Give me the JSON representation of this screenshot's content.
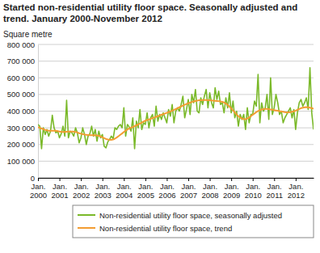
{
  "chart_data": {
    "type": "line",
    "title": "Started non-residential utility floor space. Seasonally adjusted and trend. January 2000-November 2012",
    "y_label": "Square metre",
    "categories": [
      "Jan. 2000",
      null,
      null,
      null,
      null,
      null,
      null,
      null,
      null,
      null,
      null,
      null,
      "Jan. 2001",
      null,
      null,
      null,
      null,
      null,
      null,
      null,
      null,
      null,
      null,
      null,
      "Jan. 2002",
      null,
      null,
      null,
      null,
      null,
      null,
      null,
      null,
      null,
      null,
      null,
      "Jan. 2003",
      null,
      null,
      null,
      null,
      null,
      null,
      null,
      null,
      null,
      null,
      null,
      "Jan. 2004",
      null,
      null,
      null,
      null,
      null,
      null,
      null,
      null,
      null,
      null,
      null,
      "Jan. 2005",
      null,
      null,
      null,
      null,
      null,
      null,
      null,
      null,
      null,
      null,
      null,
      "Jan. 2006",
      null,
      null,
      null,
      null,
      null,
      null,
      null,
      null,
      null,
      null,
      null,
      "Jan. 2007",
      null,
      null,
      null,
      null,
      null,
      null,
      null,
      null,
      null,
      null,
      null,
      "Jan. 2008",
      null,
      null,
      null,
      null,
      null,
      null,
      null,
      null,
      null,
      null,
      null,
      "Jan. 2009",
      null,
      null,
      null,
      null,
      null,
      null,
      null,
      null,
      null,
      null,
      null,
      "Jan. 2010",
      null,
      null,
      null,
      null,
      null,
      null,
      null,
      null,
      null,
      null,
      null,
      "Jan. 2011",
      null,
      null,
      null,
      null,
      null,
      null,
      null,
      null,
      null,
      null,
      null,
      "Jan. 2012",
      null,
      null,
      null,
      null,
      null,
      null,
      null,
      null,
      null,
      null
    ],
    "series": [
      {
        "name": "Non-residential utility floor space, seasonally adjusted",
        "color": "#7ab929",
        "values": [
          320000,
          310000,
          175000,
          300000,
          260000,
          290000,
          250000,
          280000,
          375000,
          300000,
          270000,
          280000,
          240000,
          265000,
          310000,
          250000,
          465000,
          240000,
          280000,
          270000,
          250000,
          300000,
          270000,
          210000,
          240000,
          300000,
          260000,
          200000,
          250000,
          265000,
          310000,
          250000,
          290000,
          220000,
          280000,
          240000,
          260000,
          190000,
          180000,
          215000,
          230000,
          250000,
          235000,
          300000,
          290000,
          310000,
          320000,
          300000,
          420000,
          250000,
          320000,
          305000,
          280000,
          360000,
          175000,
          340000,
          300000,
          410000,
          290000,
          330000,
          320000,
          390000,
          300000,
          360000,
          380000,
          310000,
          430000,
          340000,
          380000,
          350000,
          390000,
          360000,
          330000,
          410000,
          370000,
          440000,
          330000,
          400000,
          420000,
          400000,
          440000,
          490000,
          360000,
          410000,
          470000,
          380000,
          500000,
          450000,
          530000,
          400000,
          390000,
          480000,
          440000,
          490000,
          530000,
          420000,
          510000,
          450000,
          420000,
          540000,
          470000,
          520000,
          440000,
          450000,
          390000,
          480000,
          420000,
          510000,
          390000,
          460000,
          360000,
          400000,
          310000,
          380000,
          350000,
          380000,
          290000,
          420000,
          330000,
          380000,
          380000,
          460000,
          430000,
          620000,
          330000,
          450000,
          400000,
          420000,
          500000,
          350000,
          600000,
          380000,
          420000,
          500000,
          450000,
          380000,
          400000,
          330000,
          360000,
          380000,
          400000,
          420000,
          360000,
          410000,
          290000,
          390000,
          450000,
          470000,
          430000,
          450000,
          480000,
          410000,
          660000,
          390000,
          290000
        ]
      },
      {
        "name": "Non-residential utility floor space, trend",
        "color": "#f39c32",
        "values": [
          305000,
          300000,
          296000,
          292000,
          288000,
          285000,
          283000,
          282000,
          282000,
          283000,
          282000,
          280000,
          278000,
          276000,
          275000,
          275000,
          276000,
          277000,
          278000,
          278000,
          277000,
          275000,
          272000,
          268000,
          265000,
          262000,
          260000,
          258000,
          257000,
          256000,
          256000,
          256000,
          255000,
          254000,
          252000,
          248000,
          243000,
          238000,
          233000,
          230000,
          228000,
          228000,
          230000,
          235000,
          242000,
          250000,
          258000,
          266000,
          275000,
          283000,
          290000,
          296000,
          301000,
          305000,
          310000,
          315000,
          320000,
          326000,
          332000,
          338000,
          343000,
          347000,
          350000,
          354000,
          358000,
          362000,
          366000,
          370000,
          374000,
          378000,
          382000,
          386000,
          390000,
          394000,
          398000,
          403000,
          408000,
          413000,
          418000,
          423000,
          428000,
          433000,
          438000,
          443000,
          447000,
          451000,
          455000,
          458000,
          461000,
          463000,
          465000,
          466000,
          467000,
          467000,
          467000,
          466000,
          465000,
          464000,
          463000,
          462000,
          461000,
          460000,
          458000,
          456000,
          452000,
          446000,
          438000,
          428000,
          416000,
          404000,
          392000,
          380000,
          370000,
          362000,
          356000,
          352000,
          352000,
          356000,
          362000,
          370000,
          378000,
          386000,
          394000,
          401000,
          406000,
          410000,
          412000,
          413000,
          413000,
          412000,
          410000,
          408000,
          406000,
          404000,
          402000,
          400000,
          398000,
          396000,
          394000,
          393000,
          393000,
          394000,
          396000,
          399000,
          403000,
          408000,
          413000,
          418000,
          421000,
          423000,
          424000,
          423000,
          421000,
          418000,
          414000
        ]
      }
    ],
    "ylim": [
      0,
      800000
    ],
    "yticks": [
      0,
      {
        "value": 100000,
        "label": "100 000"
      },
      {
        "value": 200000,
        "label": "200 000"
      },
      {
        "value": 300000,
        "label": "300 000"
      },
      {
        "value": 400000,
        "label": "400 000"
      },
      {
        "value": 500000,
        "label": "500 000"
      },
      {
        "value": 600000,
        "label": "600 000"
      },
      {
        "value": 700000,
        "label": "700 000"
      },
      {
        "value": 800000,
        "label": "800 000"
      }
    ],
    "grid": true,
    "legend": "bottom"
  }
}
